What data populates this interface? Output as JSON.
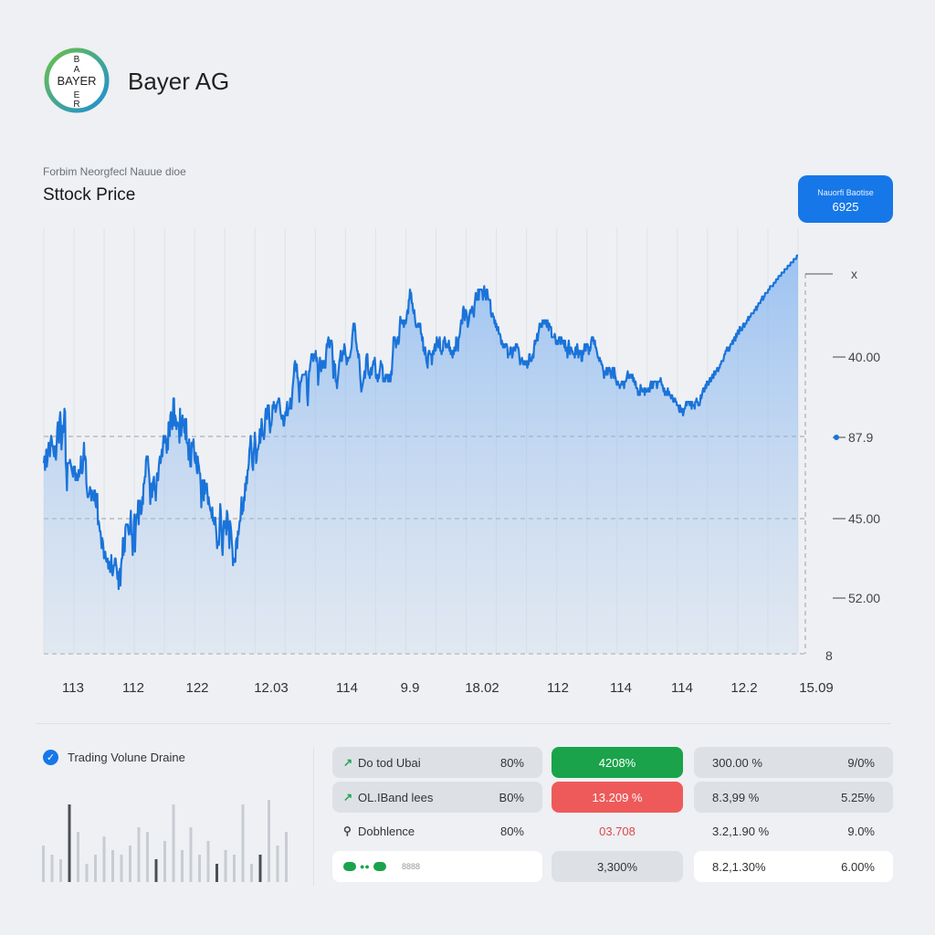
{
  "header": {
    "logo_text": "BAYER",
    "company": "Bayer AG",
    "subtitle": "Forbim Neorgfecl Nauue dioe",
    "title": "Sttock Price"
  },
  "price_badge": {
    "label": "Nauorfi Baotise",
    "value": "6925"
  },
  "chart_data": {
    "type": "area",
    "title": "Sttock Price",
    "x_tick_labels": [
      "113",
      "112",
      "122",
      "12.03",
      "114",
      "9.9",
      "18.02",
      "112",
      "114",
      "114",
      "12.2",
      "15.09"
    ],
    "y_tick_labels": [
      "x",
      "40.00",
      "87.9",
      "45.00",
      "52.00",
      "8"
    ],
    "series": [
      {
        "values": [
          56,
          58,
          54,
          56,
          60,
          55,
          57,
          60,
          62,
          61,
          58,
          62,
          64,
          63,
          61,
          61,
          59,
          58,
          61,
          58,
          57,
          61,
          66,
          68,
          64,
          62,
          69,
          71,
          67,
          60,
          63,
          67,
          65,
          68,
          72,
          71,
          56,
          54,
          48,
          56,
          56,
          56,
          56,
          57,
          56,
          55,
          54,
          53,
          52,
          55,
          53,
          55,
          51,
          53,
          52,
          51,
          51,
          54,
          52,
          54,
          54,
          58,
          53,
          53,
          54,
          58,
          62,
          57,
          58,
          57,
          50,
          48,
          46,
          46,
          47,
          47,
          49,
          48,
          45,
          48,
          47,
          47,
          45,
          48,
          48,
          44,
          43,
          47,
          47,
          38,
          39,
          38,
          36,
          36,
          34,
          31,
          34,
          33,
          31,
          28,
          29,
          30,
          28,
          27,
          27,
          28,
          25,
          27,
          27,
          24,
          25,
          29,
          24,
          23,
          24,
          26,
          26,
          28,
          28,
          26,
          25,
          22,
          24,
          19,
          23,
          25,
          20,
          26,
          28,
          28,
          34,
          29,
          34,
          30,
          37,
          38,
          38,
          38,
          38,
          36,
          35,
          36,
          38,
          42,
          35,
          35,
          29,
          32,
          39,
          41,
          30,
          37,
          40,
          41,
          40,
          45,
          38,
          44,
          45,
          44,
          41,
          42,
          46,
          44,
          50,
          50,
          52,
          52,
          57,
          58,
          57,
          58,
          55,
          53,
          50,
          44,
          48,
          50,
          46,
          50,
          51,
          52,
          48,
          48,
          45,
          49,
          53,
          51,
          51,
          55,
          57,
          58,
          56,
          58,
          60,
          58,
          62,
          64,
          62,
          63,
          64,
          63,
          59,
          63,
          60,
          68,
          67,
          64,
          70,
          71,
          69,
          66,
          68,
          75,
          75,
          67,
          70,
          69,
          66,
          68,
          68,
          67,
          67,
          62,
          72,
          64,
          64,
          68,
          70,
          67,
          68,
          65,
          69,
          63,
          69,
          62,
          62,
          61,
          57,
          63,
          58,
          55,
          55,
          62,
          62,
          61,
          63,
          60,
          57,
          56,
          59,
          55,
          53,
          58,
          56,
          55,
          53,
          53,
          49,
          43,
          49,
          51,
          48,
          45,
          51,
          47,
          50,
          49,
          50,
          47,
          44,
          46,
          44,
          43,
          42,
          42,
          40,
          43,
          39,
          40,
          38,
          38,
          40,
          37,
          34,
          31,
          33,
          33,
          32,
          38,
          44,
          42,
          37,
          31,
          29,
          35,
          39,
          38,
          37,
          39,
          35,
          42,
          41,
          37,
          36,
          31,
          39,
          38,
          36,
          33,
          31,
          26,
          28,
          27,
          27,
          27,
          33,
          34,
          31,
          36,
          35,
          37,
          39,
          39,
          42,
          46,
          41,
          42,
          42,
          46,
          45,
          50,
          48,
          52,
          50,
          54,
          54,
          56,
          60,
          61,
          64,
          62,
          58,
          55,
          54,
          59,
          61,
          65,
          62,
          56,
          57,
          60,
          60,
          61,
          62,
          66,
          62,
          65,
          69,
          67,
          64,
          64,
          63,
          65,
          70,
          72,
          71,
          69,
          73,
          70,
          73,
          68,
          65,
          67,
          67,
          69,
          73,
          72,
          74,
          73,
          73,
          71,
          72,
          73,
          74,
          74,
          75,
          75,
          73,
          71,
          70,
          69,
          69,
          70,
          67,
          67,
          69,
          71,
          70,
          72,
          74,
          70,
          72,
          72,
          72,
          75,
          74,
          72,
          75,
          78,
          80,
          82,
          85,
          86,
          85,
          83,
          85,
          81,
          81,
          78,
          74,
          78,
          80,
          80,
          81,
          82,
          82,
          82,
          82,
          82,
          82,
          83,
          81,
          76,
          73,
          78,
          83,
          83,
          85,
          86,
          88,
          88,
          88,
          86,
          87,
          88,
          87,
          89,
          86,
          87,
          85,
          79,
          82,
          84,
          87,
          84,
          83,
          86,
          86,
          84,
          86,
          86,
          84,
          84,
          88,
          91,
          90,
          92,
          93,
          92,
          90,
          92,
          91,
          92,
          91,
          86,
          81,
          86,
          84,
          85,
          80,
          80,
          78,
          80,
          82,
          84,
          86,
          87,
          89,
          86,
          86,
          88,
          89,
          88,
          91,
          90,
          88,
          87,
          85,
          87,
          86,
          87,
          87,
          87,
          88,
          89,
          90,
          93,
          95,
          97,
          95,
          97,
          95,
          92,
          91,
          89,
          89,
          87,
          88,
          86,
          82,
          79,
          77,
          78,
          79,
          80,
          81,
          83,
          81,
          83,
          87,
          88,
          88,
          84,
          82,
          82,
          81,
          83,
          84,
          82,
          84,
          85,
          86,
          85,
          87,
          85,
          81,
          82,
          81,
          80,
          82,
          81,
          83,
          84,
          86,
          85,
          85,
          84,
          80,
          81,
          80,
          80,
          82,
          81,
          82,
          82,
          80,
          80,
          82,
          80,
          80,
          83,
          82,
          86,
          89,
          93,
          93,
          93,
          92,
          90,
          92,
          92,
          93,
          91,
          92,
          96,
          99,
          98,
          98,
          97,
          97,
          98,
          96,
          97,
          98,
          97,
          98,
          100,
          101,
          100,
          104,
          104,
          107,
          106,
          106,
          103,
          103,
          101,
          100,
          101,
          99,
          97,
          96,
          96,
          96,
          97,
          97,
          96,
          97,
          97,
          94,
          94,
          92,
          93,
          89,
          90,
          88,
          90,
          88,
          86,
          85,
          84,
          88,
          89,
          89,
          88,
          88,
          88,
          85,
          88,
          89,
          88,
          90,
          91,
          89,
          90,
          93,
          92,
          91,
          90,
          92,
          93,
          89,
          89,
          88,
          89,
          89,
          92,
          92,
          93,
          92,
          90,
          91,
          91,
          90,
          91,
          92,
          89,
          90,
          88,
          88,
          89,
          87,
          89,
          88,
          90,
          89,
          89,
          93,
          92,
          91,
          89,
          93,
          93,
          94,
          96,
          98,
          97,
          97,
          101,
          102,
          101,
          98,
          100,
          101,
          100,
          99,
          96,
          97,
          98,
          100,
          101,
          100,
          101,
          102,
          101,
          100,
          99,
          102,
          104,
          106,
          104,
          104,
          104,
          107,
          104,
          107,
          107,
          107,
          107,
          107,
          106,
          104,
          106,
          108,
          106,
          105,
          104,
          107,
          107,
          105,
          104,
          104,
          104,
          104,
          100,
          99,
          100,
          100,
          99,
          99,
          97,
          98,
          96,
          97,
          95,
          96,
          96,
          94,
          94,
          94,
          93,
          91,
          92,
          91,
          90,
          91,
          90,
          90,
          91,
          91,
          91,
          90,
          87,
          88,
          88,
          88,
          90,
          90,
          89,
          87,
          88,
          90,
          90,
          90,
          89,
          91,
          90,
          91,
          90,
          90,
          89,
          87,
          85,
          86,
          86,
          87,
          86,
          85,
          85,
          86,
          85,
          85,
          86,
          85,
          84,
          86,
          85,
          88,
          88,
          86,
          86,
          86,
          87,
          88,
          87,
          90,
          92,
          91,
          92,
          92,
          94,
          92,
          94,
          95,
          97,
          96,
          96,
          97,
          96,
          98,
          97,
          97,
          98,
          97,
          98,
          97,
          96,
          98,
          97,
          95,
          97,
          96,
          96,
          96,
          93,
          93,
          93,
          93,
          93,
          94,
          93,
          91,
          92,
          91,
          92,
          91,
          93,
          93,
          93,
          91,
          93,
          92,
          92,
          91,
          92,
          90,
          92,
          89,
          90,
          89,
          87,
          90,
          92,
          90,
          88,
          89,
          90,
          89,
          89,
          88,
          88,
          88,
          87,
          90,
          88,
          90,
          91,
          89,
          87,
          89,
          89,
          88,
          89,
          86,
          86,
          89,
          88,
          89,
          91,
          90,
          89,
          91,
          91,
          91,
          90,
          88,
          90,
          89,
          90,
          92,
          93,
          92,
          93,
          92,
          91,
          92,
          90,
          90,
          89,
          88,
          87,
          87,
          86,
          87,
          86,
          86,
          85,
          85,
          84,
          83,
          81,
          82,
          83,
          82,
          84,
          82,
          82,
          84,
          83,
          84,
          83,
          82,
          81,
          83,
          84,
          84,
          81,
          84,
          82,
          81,
          80,
          79,
          80,
          80,
          79,
          79,
          78,
          79,
          79,
          80,
          80,
          79,
          80,
          78,
          80,
          80,
          80,
          81,
          82,
          83,
          81,
          82,
          81,
          82,
          82,
          82,
          81,
          82,
          80,
          81,
          80,
          79,
          80,
          78,
          78,
          78,
          76,
          77,
          77,
          76,
          79,
          78,
          78,
          77,
          77,
          77,
          78,
          76,
          78,
          77,
          77,
          77,
          78,
          78,
          77,
          77,
          79,
          80,
          78,
          80,
          78,
          79,
          80,
          80,
          80,
          80,
          80,
          78,
          79,
          80,
          80,
          80,
          80,
          81,
          80,
          79,
          79,
          78,
          77,
          78,
          76,
          77,
          77,
          76,
          77,
          78,
          76,
          77,
          76,
          76,
          75,
          76,
          76,
          75,
          74,
          74,
          75,
          75,
          74,
          74,
          73,
          73,
          73,
          72,
          71,
          73,
          72,
          71,
          72,
          72,
          70,
          71,
          72,
          72,
          73,
          74,
          73,
          74,
          74,
          74,
          74,
          73,
          74,
          74,
          72,
          74,
          73,
          73,
          73,
          72,
          74,
          74,
          75,
          74,
          74,
          73,
          73,
          73,
          74,
          76,
          75,
          76,
          77,
          78,
          78,
          77,
          78,
          79,
          78,
          80,
          80,
          79,
          79,
          80,
          81,
          81,
          80,
          81,
          82,
          81,
          81,
          83,
          83,
          82,
          83,
          83,
          84,
          84,
          83,
          84,
          84,
          85,
          85,
          86,
          86,
          86,
          86,
          87,
          88,
          88,
          89,
          89,
          90,
          89,
          89,
          90,
          89,
          90,
          91,
          91,
          91,
          92,
          91,
          92,
          93,
          93,
          92,
          94,
          93,
          94,
          95,
          94,
          94,
          96,
          96,
          95,
          95,
          95,
          96,
          97,
          97,
          96,
          97,
          97,
          97,
          98,
          98,
          99,
          98,
          99,
          99,
          99,
          100,
          100,
          100,
          100,
          100,
          101,
          101,
          101,
          102,
          101,
          102,
          102,
          103,
          103,
          103,
          103,
          104,
          104,
          105,
          104,
          104,
          105,
          105,
          106,
          106,
          106,
          106,
          106,
          107,
          107,
          107,
          108,
          108,
          108,
          108,
          108,
          108,
          109,
          109,
          109,
          109,
          110,
          110,
          110,
          110,
          111,
          111,
          111,
          111,
          111,
          112,
          112,
          112,
          112,
          112,
          113,
          113,
          113,
          113,
          113,
          114,
          114,
          114,
          114,
          114,
          115,
          115,
          115,
          115,
          115,
          116,
          116,
          116,
          116,
          116,
          117,
          117,
          117
        ]
      }
    ]
  },
  "volume": {
    "title": "Trading Volune Draine"
  },
  "stats": {
    "rows": [
      {
        "label": "Do tod Ubai",
        "col1": "80%",
        "col2": "4208%",
        "col3": "300.00 %",
        "col4": "9/0%"
      },
      {
        "label": "OL.IBand lees",
        "col1": "B0%",
        "col2": "13.209 %",
        "col3": "8.3,99 %",
        "col4": "5.25%"
      },
      {
        "label": "Dobhlence",
        "col1": "80%",
        "col2": "03.708",
        "col3": "3.2,1.90 %",
        "col4": "9.0%"
      },
      {
        "label": "8888",
        "col2": "3,300%",
        "col3": "8.2,1.30%",
        "col4": "6.00%"
      }
    ]
  },
  "colors": {
    "accent": "#1677e8",
    "green": "#1aa34a",
    "red": "#ee5a5a"
  }
}
